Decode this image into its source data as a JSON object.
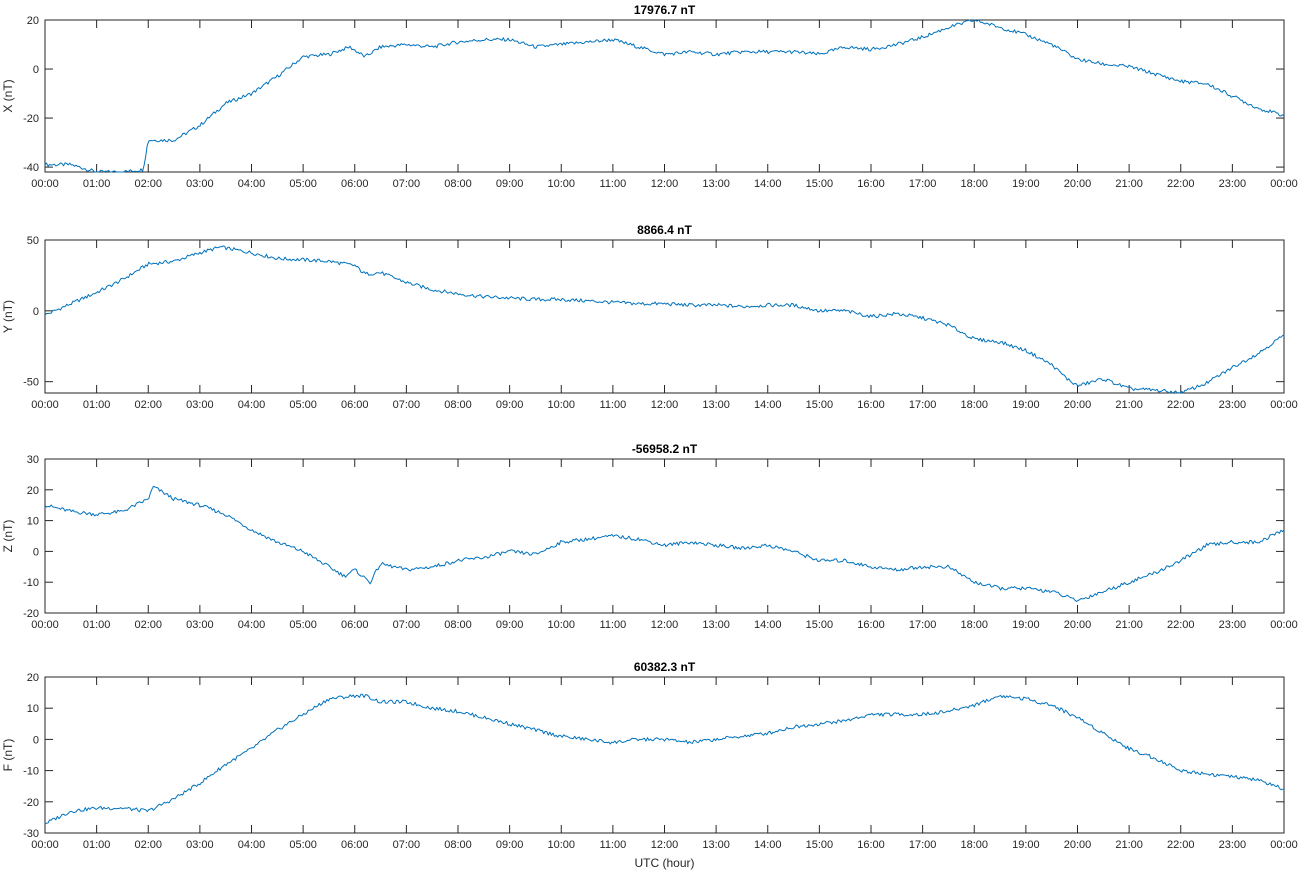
{
  "figure": {
    "xlabel": "UTC (hour)"
  },
  "colors": {
    "line": "#0072BD",
    "axes": "#262626"
  },
  "chart_data": [
    {
      "type": "line",
      "title": "17976.7 nT",
      "ylabel": "X (nT)",
      "xlabel": "",
      "xlim": [
        0,
        24
      ],
      "ylim": [
        -42,
        20
      ],
      "yticks": [
        -40,
        -20,
        0,
        20
      ],
      "xticklabels": [
        "00:00",
        "01:00",
        "02:00",
        "03:00",
        "04:00",
        "05:00",
        "06:00",
        "07:00",
        "08:00",
        "09:00",
        "10:00",
        "11:00",
        "12:00",
        "13:00",
        "14:00",
        "15:00",
        "16:00",
        "17:00",
        "18:00",
        "19:00",
        "20:00",
        "21:00",
        "22:00",
        "23:00",
        "00:00"
      ],
      "grid": false,
      "series": [
        {
          "x": [
            0,
            0.5,
            1.0,
            1.5,
            1.9,
            2.0,
            2.5,
            3.0,
            3.5,
            4.0,
            4.5,
            5.0,
            5.5,
            5.9,
            6.2,
            6.5,
            7.0,
            7.5,
            8.0,
            8.5,
            9.0,
            9.5,
            10.0,
            10.5,
            11.0,
            11.5,
            12.0,
            12.5,
            13.0,
            13.5,
            14.0,
            14.5,
            15.0,
            15.5,
            16.0,
            16.5,
            17.0,
            17.5,
            18.0,
            18.5,
            19.0,
            19.5,
            20.0,
            20.5,
            21.0,
            21.5,
            22.0,
            22.5,
            23.0,
            23.5,
            24.0
          ],
          "values": [
            -39,
            -39,
            -42,
            -42,
            -41,
            -29,
            -29,
            -23,
            -14,
            -10,
            -3,
            5,
            6,
            9,
            5,
            9,
            10,
            9,
            11,
            12,
            12,
            9,
            10,
            11,
            12,
            9,
            6,
            7,
            6,
            7,
            7,
            7,
            6,
            9,
            8,
            10,
            13,
            17,
            20,
            17,
            14,
            10,
            4,
            2,
            1,
            -2,
            -5,
            -6,
            -11,
            -16,
            -19
          ]
        }
      ]
    },
    {
      "type": "line",
      "title": "8866.4 nT",
      "ylabel": "Y (nT)",
      "xlabel": "",
      "xlim": [
        0,
        24
      ],
      "ylim": [
        -58,
        50
      ],
      "yticks": [
        -50,
        0,
        50
      ],
      "xticklabels": [
        "00:00",
        "01:00",
        "02:00",
        "03:00",
        "04:00",
        "05:00",
        "06:00",
        "07:00",
        "08:00",
        "09:00",
        "10:00",
        "11:00",
        "12:00",
        "13:00",
        "14:00",
        "15:00",
        "16:00",
        "17:00",
        "18:00",
        "19:00",
        "20:00",
        "21:00",
        "22:00",
        "23:00",
        "00:00"
      ],
      "grid": false,
      "series": [
        {
          "x": [
            0,
            0.5,
            1.0,
            1.5,
            2.0,
            2.5,
            3.0,
            3.4,
            4.0,
            4.5,
            5.0,
            5.5,
            6.0,
            6.2,
            6.5,
            7.0,
            7.5,
            8.0,
            8.5,
            9.0,
            9.5,
            10.0,
            10.5,
            11.0,
            11.5,
            12.0,
            12.5,
            13.0,
            13.5,
            14.0,
            14.5,
            15.0,
            15.5,
            16.0,
            16.5,
            17.0,
            17.5,
            18.0,
            18.5,
            19.0,
            19.5,
            19.8,
            20.0,
            20.5,
            21.0,
            21.5,
            22.0,
            22.5,
            23.0,
            23.5,
            24.0
          ],
          "values": [
            -3,
            5,
            13,
            22,
            33,
            35,
            41,
            45,
            41,
            37,
            36,
            35,
            32,
            26,
            27,
            20,
            15,
            12,
            10,
            9,
            8,
            8,
            7,
            6,
            5,
            5,
            4,
            4,
            3,
            4,
            4,
            0,
            0,
            -4,
            -2,
            -5,
            -10,
            -20,
            -22,
            -28,
            -38,
            -48,
            -53,
            -48,
            -55,
            -56,
            -58,
            -51,
            -40,
            -30,
            -17
          ]
        }
      ]
    },
    {
      "type": "line",
      "title": "-56958.2 nT",
      "ylabel": "Z (nT)",
      "xlabel": "",
      "xlim": [
        0,
        24
      ],
      "ylim": [
        -20,
        30
      ],
      "yticks": [
        -20,
        -10,
        0,
        10,
        20,
        30
      ],
      "xticklabels": [
        "00:00",
        "01:00",
        "02:00",
        "03:00",
        "04:00",
        "05:00",
        "06:00",
        "07:00",
        "08:00",
        "09:00",
        "10:00",
        "11:00",
        "12:00",
        "13:00",
        "14:00",
        "15:00",
        "16:00",
        "17:00",
        "18:00",
        "19:00",
        "20:00",
        "21:00",
        "22:00",
        "23:00",
        "00:00"
      ],
      "grid": false,
      "series": [
        {
          "x": [
            0,
            0.5,
            1.0,
            1.5,
            2.0,
            2.1,
            2.5,
            3.0,
            3.5,
            4.0,
            4.5,
            5.0,
            5.5,
            5.8,
            6.0,
            6.3,
            6.5,
            7.0,
            7.5,
            8.0,
            8.5,
            9.0,
            9.5,
            10.0,
            10.5,
            11.0,
            11.5,
            12.0,
            12.5,
            13.0,
            13.5,
            14.0,
            14.5,
            15.0,
            15.5,
            16.0,
            16.5,
            17.0,
            17.5,
            18.0,
            18.5,
            19.0,
            19.5,
            20.0,
            20.5,
            21.0,
            21.5,
            22.0,
            22.5,
            23.0,
            23.5,
            24.0
          ],
          "values": [
            15,
            13,
            12,
            13,
            17,
            21,
            17,
            15,
            12,
            7,
            3,
            0,
            -5,
            -8,
            -6,
            -10,
            -4,
            -6,
            -5,
            -3,
            -2,
            0,
            -1,
            3,
            4,
            5,
            4,
            2,
            3,
            2,
            1,
            2,
            0,
            -3,
            -3,
            -5,
            -6,
            -5,
            -5,
            -10,
            -12,
            -12,
            -13,
            -16,
            -13,
            -10,
            -7,
            -3,
            2,
            3,
            3,
            7
          ]
        }
      ]
    },
    {
      "type": "line",
      "title": "60382.3 nT",
      "ylabel": "F (nT)",
      "xlabel": "UTC (hour)",
      "xlim": [
        0,
        24
      ],
      "ylim": [
        -30,
        20
      ],
      "yticks": [
        -30,
        -20,
        -10,
        0,
        10,
        20
      ],
      "xticklabels": [
        "00:00",
        "01:00",
        "02:00",
        "03:00",
        "04:00",
        "05:00",
        "06:00",
        "07:00",
        "08:00",
        "09:00",
        "10:00",
        "11:00",
        "12:00",
        "13:00",
        "14:00",
        "15:00",
        "16:00",
        "17:00",
        "18:00",
        "19:00",
        "20:00",
        "21:00",
        "22:00",
        "23:00",
        "00:00"
      ],
      "grid": false,
      "series": [
        {
          "x": [
            0,
            0.5,
            1.0,
            1.5,
            2.0,
            2.5,
            3.0,
            3.5,
            4.0,
            4.5,
            5.0,
            5.5,
            6.0,
            6.2,
            6.5,
            7.0,
            7.5,
            8.0,
            8.5,
            9.0,
            9.5,
            10.0,
            10.5,
            11.0,
            11.5,
            12.0,
            12.5,
            13.0,
            13.5,
            14.0,
            14.5,
            15.0,
            15.5,
            16.0,
            16.5,
            17.0,
            17.5,
            18.0,
            18.5,
            19.0,
            19.5,
            20.0,
            20.5,
            21.0,
            21.5,
            22.0,
            22.5,
            23.0,
            23.5,
            24.0
          ],
          "values": [
            -27,
            -23,
            -22,
            -22,
            -23,
            -19,
            -14,
            -8,
            -3,
            3,
            8,
            13,
            14,
            14,
            12,
            12,
            10,
            9,
            7,
            5,
            3,
            1,
            0,
            -1,
            0,
            0,
            -1,
            0,
            1,
            2,
            4,
            5,
            6,
            8,
            8,
            8,
            9,
            11,
            14,
            13,
            11,
            7,
            2,
            -3,
            -6,
            -10,
            -11,
            -12,
            -13,
            -16
          ]
        }
      ]
    }
  ]
}
